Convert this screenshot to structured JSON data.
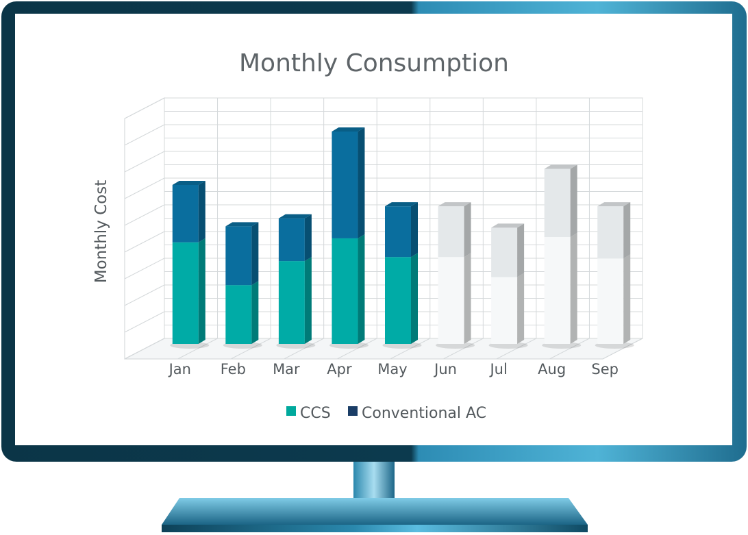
{
  "chart_data": {
    "type": "bar",
    "stacked": true,
    "three_d": true,
    "title": "Monthly Consumption",
    "ylabel": "Monthly Cost",
    "xlabel": "",
    "categories": [
      "Jan",
      "Feb",
      "Mar",
      "Apr",
      "May",
      "Jun",
      "Jul",
      "Aug",
      "Sep"
    ],
    "series": [
      {
        "name": "CCS",
        "values": [
          7.6,
          4.4,
          6.2,
          7.9,
          6.5,
          6.5,
          5.0,
          8.0,
          6.4
        ]
      },
      {
        "name": "Conventional AC",
        "values": [
          4.3,
          4.4,
          3.2,
          8.0,
          3.8,
          3.8,
          3.7,
          5.1,
          3.9
        ]
      }
    ],
    "highlighted_categories": [
      "Jan",
      "Feb",
      "Mar",
      "Apr",
      "May"
    ],
    "ylim": [
      0,
      18
    ],
    "gridlines": true,
    "y_tick_labels_shown": false,
    "legend": {
      "position": "bottom"
    },
    "colors": {
      "ccs": "#00ABA6",
      "conventional_ac": "#0A6E9E",
      "legend_ccs": "#00A99D",
      "legend_conventional_ac": "#1A3D66",
      "inactive_lower": "#F6F8F9",
      "inactive_upper": "#E4E8EA",
      "title_text": "#5E6468",
      "axis_text": "#53595D"
    }
  },
  "device": {
    "frame_color": "#0C3A4E",
    "frame_highlight": "#3EA3C8",
    "stand_color": "#1D6D8E"
  }
}
